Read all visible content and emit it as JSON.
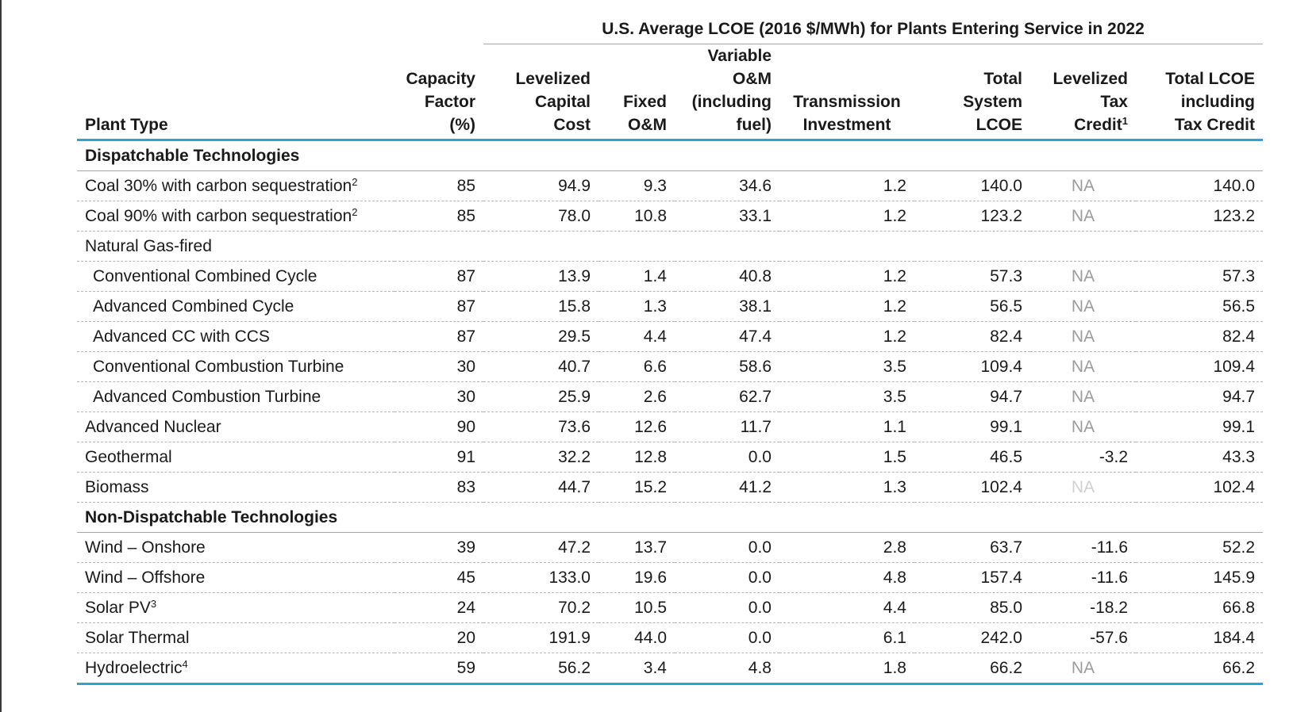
{
  "super_header": "U.S. Average LCOE (2016 $/MWh) for Plants Entering Service in 2022",
  "columns": [
    {
      "lines": [
        "Plant Type"
      ]
    },
    {
      "lines": [
        "Capacity",
        "Factor",
        "(%)"
      ]
    },
    {
      "lines": [
        "Levelized",
        "Capital",
        "Cost"
      ]
    },
    {
      "lines": [
        "Fixed",
        "O&M"
      ]
    },
    {
      "lines": [
        "Variable",
        "O&M",
        "(including",
        "fuel)"
      ]
    },
    {
      "lines": [
        "Transmission",
        "Investment"
      ]
    },
    {
      "lines": [
        "Total",
        "System",
        "LCOE"
      ]
    },
    {
      "lines": [
        "Levelized",
        "Tax",
        "Credit"
      ],
      "sup": "1"
    },
    {
      "lines": [
        "Total LCOE",
        "including",
        "Tax Credit"
      ]
    }
  ],
  "rows": [
    {
      "kind": "section",
      "name": "Dispatchable Technologies"
    },
    {
      "kind": "data",
      "name": "Coal 30% with carbon sequestration",
      "sup": "2",
      "values": [
        "85",
        "94.9",
        "9.3",
        "34.6",
        "1.2",
        "140.0",
        "NA",
        "140.0"
      ]
    },
    {
      "kind": "data",
      "name": "Coal 90% with carbon sequestration",
      "sup": "2",
      "values": [
        "85",
        "78.0",
        "10.8",
        "33.1",
        "1.2",
        "123.2",
        "NA",
        "123.2"
      ]
    },
    {
      "kind": "group",
      "name": "Natural Gas-fired"
    },
    {
      "kind": "data",
      "indent": true,
      "name": "Conventional Combined Cycle",
      "values": [
        "87",
        "13.9",
        "1.4",
        "40.8",
        "1.2",
        "57.3",
        "NA",
        "57.3"
      ]
    },
    {
      "kind": "data",
      "indent": true,
      "name": "Advanced Combined Cycle",
      "values": [
        "87",
        "15.8",
        "1.3",
        "38.1",
        "1.2",
        "56.5",
        "NA",
        "56.5"
      ]
    },
    {
      "kind": "data",
      "indent": true,
      "name": "Advanced CC with CCS",
      "values": [
        "87",
        "29.5",
        "4.4",
        "47.4",
        "1.2",
        "82.4",
        "NA",
        "82.4"
      ]
    },
    {
      "kind": "data",
      "indent": true,
      "name": "Conventional Combustion Turbine",
      "values": [
        "30",
        "40.7",
        "6.6",
        "58.6",
        "3.5",
        "109.4",
        "NA",
        "109.4"
      ]
    },
    {
      "kind": "data",
      "indent": true,
      "name": "Advanced Combustion Turbine",
      "values": [
        "30",
        "25.9",
        "2.6",
        "62.7",
        "3.5",
        "94.7",
        "NA",
        "94.7"
      ]
    },
    {
      "kind": "data",
      "name": "Advanced Nuclear",
      "values": [
        "90",
        "73.6",
        "12.6",
        "11.7",
        "1.1",
        "99.1",
        "NA",
        "99.1"
      ]
    },
    {
      "kind": "data",
      "name": "Geothermal",
      "values": [
        "91",
        "32.2",
        "12.8",
        "0.0",
        "1.5",
        "46.5",
        "-3.2",
        "43.3"
      ]
    },
    {
      "kind": "data",
      "name": "Biomass",
      "faint_na": true,
      "values": [
        "83",
        "44.7",
        "15.2",
        "41.2",
        "1.3",
        "102.4",
        "NA",
        "102.4"
      ]
    },
    {
      "kind": "section",
      "name": "Non-Dispatchable Technologies"
    },
    {
      "kind": "data",
      "name": "Wind – Onshore",
      "values": [
        "39",
        "47.2",
        "13.7",
        "0.0",
        "2.8",
        "63.7",
        "-11.6",
        "52.2"
      ]
    },
    {
      "kind": "data",
      "name": "Wind – Offshore",
      "values": [
        "45",
        "133.0",
        "19.6",
        "0.0",
        "4.8",
        "157.4",
        "-11.6",
        "145.9"
      ]
    },
    {
      "kind": "data",
      "name": "Solar PV",
      "sup": "3",
      "values": [
        "24",
        "70.2",
        "10.5",
        "0.0",
        "4.4",
        "85.0",
        "-18.2",
        "66.8"
      ]
    },
    {
      "kind": "data",
      "name": "Solar Thermal",
      "values": [
        "20",
        "191.9",
        "44.0",
        "0.0",
        "6.1",
        "242.0",
        "-57.6",
        "184.4"
      ]
    },
    {
      "kind": "data",
      "name": "Hydroelectric",
      "sup": "4",
      "values": [
        "59",
        "56.2",
        "3.4",
        "4.8",
        "1.8",
        "66.2",
        "NA",
        "66.2"
      ]
    }
  ],
  "colors": {
    "accent_rule": "#2aa3d6",
    "na_text": "#9c9c9c",
    "na_text_faint": "#d0d0d0"
  }
}
